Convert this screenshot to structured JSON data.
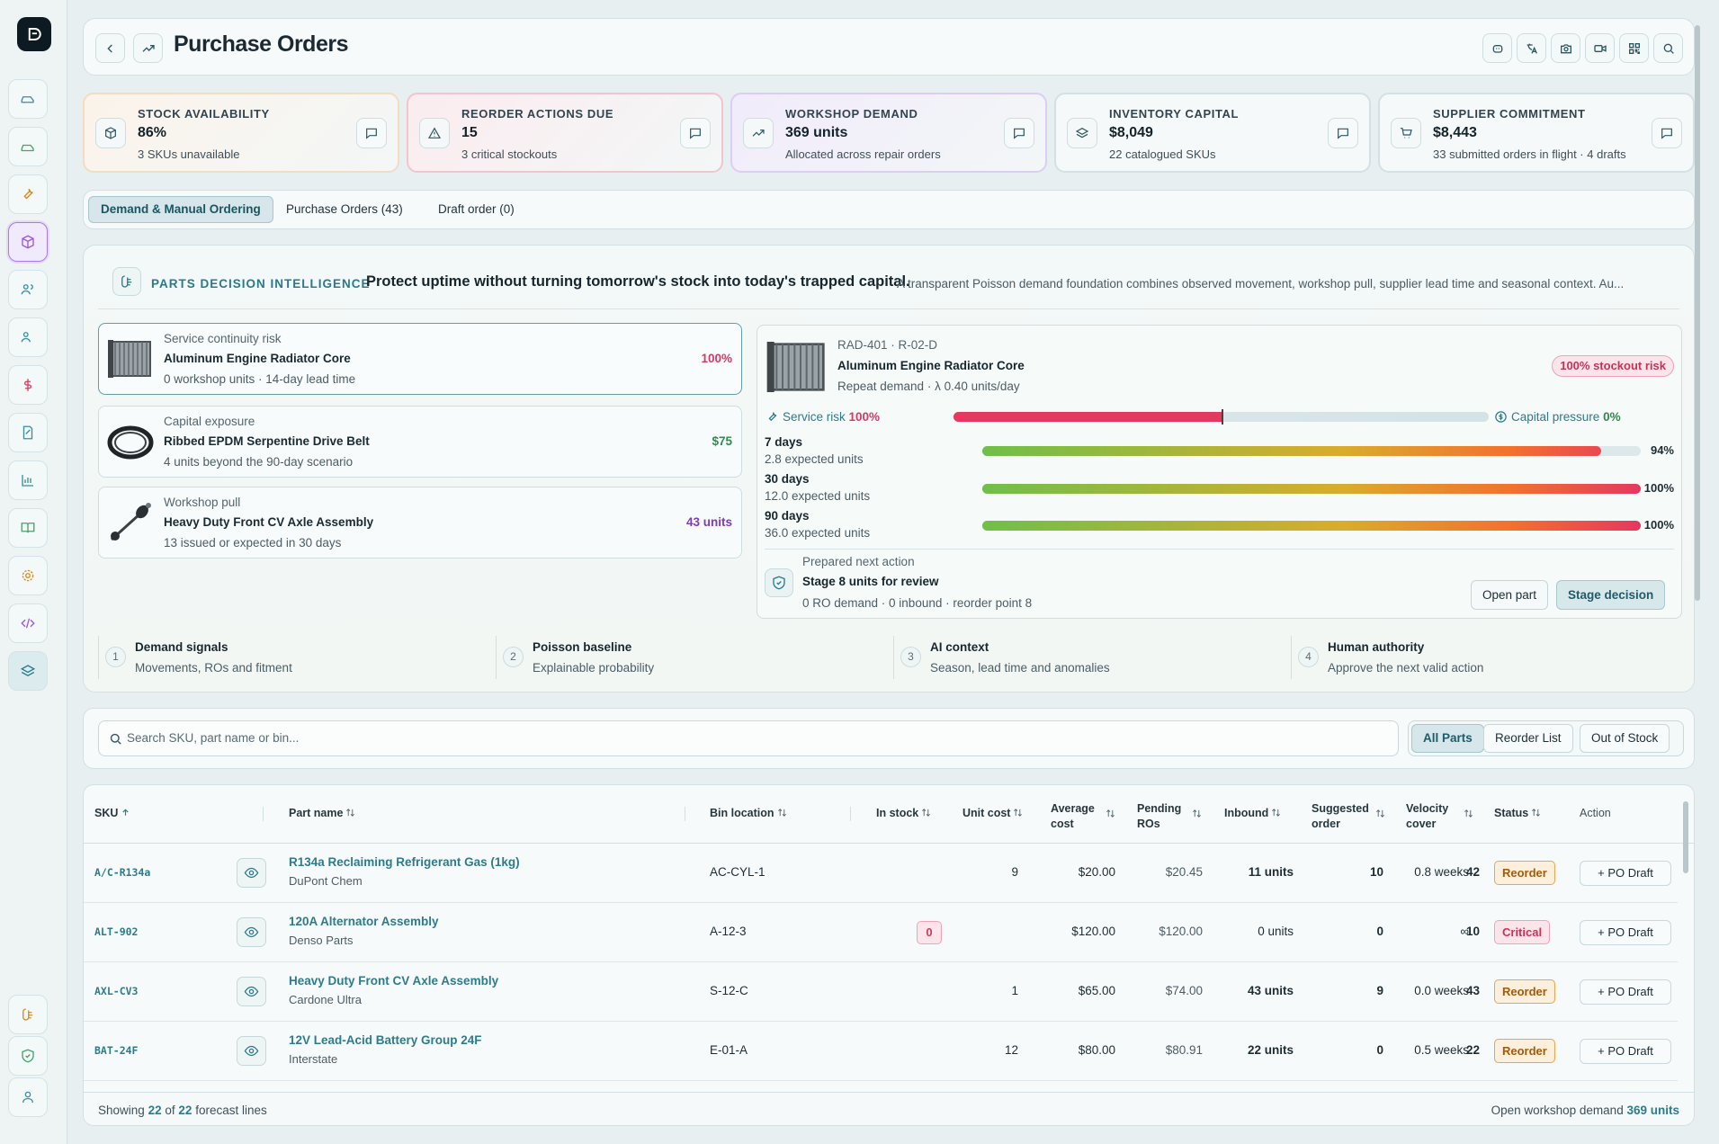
{
  "header": {
    "title": "Purchase Orders"
  },
  "kpis": [
    {
      "label": "STOCK AVAILABILITY",
      "value": "86%",
      "sub": "3 SKUs unavailable",
      "icon": "cube-icon"
    },
    {
      "label": "REORDER ACTIONS DUE",
      "value": "15",
      "sub": "3 critical stockouts",
      "icon": "warning-icon"
    },
    {
      "label": "WORKSHOP DEMAND",
      "value": "369 units",
      "sub": "Allocated across repair orders",
      "icon": "trend-icon"
    },
    {
      "label": "INVENTORY CAPITAL",
      "value": "$8,049",
      "sub": "22 catalogued SKUs",
      "icon": "layers-icon"
    },
    {
      "label": "SUPPLIER COMMITMENT",
      "value": "$8,443",
      "sub": "33 submitted orders in flight · 4 drafts",
      "icon": "cart-icon"
    }
  ],
  "tabs": [
    "Demand & Manual Ordering",
    "Purchase Orders (43)",
    "Draft order (0)"
  ],
  "intel": {
    "label": "PARTS DECISION INTELLIGENCE",
    "headline": "Protect uptime without turning tomorrow's stock into today's trapped capital.",
    "description": "A transparent Poisson demand foundation combines observed movement, workshop pull, supplier lead time and seasonal context. Au...",
    "signals": [
      {
        "kind": "Service continuity risk",
        "name": "Aluminum Engine Radiator Core",
        "detail": "0 workshop units · 14-day lead time",
        "metric": "100%",
        "color": "#d63a63"
      },
      {
        "kind": "Capital exposure",
        "name": "Ribbed EPDM Serpentine Drive Belt",
        "detail": "4 units beyond the 90-day scenario",
        "metric": "$75",
        "color": "#2f8b4f"
      },
      {
        "kind": "Workshop pull",
        "name": "Heavy Duty Front CV Axle Assembly",
        "detail": "13 issued or expected in 30 days",
        "metric": "43 units",
        "color": "#7b3bbf"
      }
    ],
    "detail": {
      "sku_bin": "RAD-401 · R-02-D",
      "name": "Aluminum Engine Radiator Core",
      "repeat": "Repeat demand · λ 0.40 units/day",
      "badge": "100% stockout risk",
      "service_label": "Service risk",
      "service_value": "100%",
      "service_fraction": 0.5,
      "capital_label": "Capital pressure",
      "capital_value": "0%",
      "horizons": [
        {
          "label": "7 days",
          "expected": "2.8 expected units",
          "pct": "94%",
          "fraction": 0.94
        },
        {
          "label": "30 days",
          "expected": "12.0 expected units",
          "pct": "100%",
          "fraction": 1.0
        },
        {
          "label": "90 days",
          "expected": "36.0 expected units",
          "pct": "100%",
          "fraction": 1.0
        }
      ],
      "next_label": "Prepared next action",
      "next_title": "Stage 8 units for review",
      "next_sub": "0 RO demand · 0 inbound · reorder point 8",
      "open_btn": "Open part",
      "stage_btn": "Stage decision"
    },
    "steps": [
      {
        "num": "1",
        "title": "Demand signals",
        "sub": "Movements, ROs and fitment"
      },
      {
        "num": "2",
        "title": "Poisson baseline",
        "sub": "Explainable probability"
      },
      {
        "num": "3",
        "title": "AI context",
        "sub": "Season, lead time and anomalies"
      },
      {
        "num": "4",
        "title": "Human authority",
        "sub": "Approve the next valid action"
      }
    ]
  },
  "search": {
    "placeholder": "Search SKU, part name or bin..."
  },
  "filters": [
    "All Parts",
    "Reorder List",
    "Out of Stock"
  ],
  "table": {
    "headers": {
      "sku": "SKU",
      "part": "Part name",
      "bin": "Bin location",
      "stock": "In stock",
      "unit": "Unit cost",
      "avg1": "Average",
      "avg2": "cost",
      "pend1": "Pending",
      "pend2": "ROs",
      "inbound": "Inbound",
      "sug1": "Suggested",
      "sug2": "order",
      "vel1": "Velocity",
      "vel2": "cover",
      "status": "Status",
      "action": "Action"
    },
    "rows": [
      {
        "sku": "A/C-R134a",
        "name": "R134a Reclaiming Refrigerant Gas (1kg)",
        "supplier": "DuPont Chem",
        "bin": "AC-CYL-1",
        "stock": "9",
        "unit": "$20.00",
        "avg": "$20.45",
        "pending": "11 units",
        "inbound": "10",
        "suggested": "42",
        "velocity": "0.8 weeks",
        "status": "Reorder",
        "action": "+ PO Draft"
      },
      {
        "sku": "ALT-902",
        "name": "120A Alternator Assembly",
        "supplier": "Denso Parts",
        "bin": "A-12-3",
        "stock": "0",
        "unit": "$120.00",
        "avg": "$120.00",
        "pending": "0 units",
        "inbound": "0",
        "suggested": "10",
        "velocity": "∞",
        "status": "Critical",
        "action": "+ PO Draft"
      },
      {
        "sku": "AXL-CV3",
        "name": "Heavy Duty Front CV Axle Assembly",
        "supplier": "Cardone Ultra",
        "bin": "S-12-C",
        "stock": "1",
        "unit": "$65.00",
        "avg": "$74.00",
        "pending": "43 units",
        "inbound": "9",
        "suggested": "43",
        "velocity": "0.0 weeks",
        "status": "Reorder",
        "action": "+ PO Draft"
      },
      {
        "sku": "BAT-24F",
        "name": "12V Lead-Acid Battery Group 24F",
        "supplier": "Interstate",
        "bin": "E-01-A",
        "stock": "12",
        "unit": "$80.00",
        "avg": "$80.91",
        "pending": "22 units",
        "inbound": "0",
        "suggested": "22",
        "velocity": "0.5 weeks",
        "status": "Reorder",
        "action": "+ PO Draft"
      }
    ],
    "footer": {
      "showing_pre": "Showing",
      "shown": "22",
      "of": "of",
      "total": "22",
      "showing_post": "forecast lines",
      "demand_label": "Open workshop demand",
      "demand_value": "369 units"
    }
  }
}
